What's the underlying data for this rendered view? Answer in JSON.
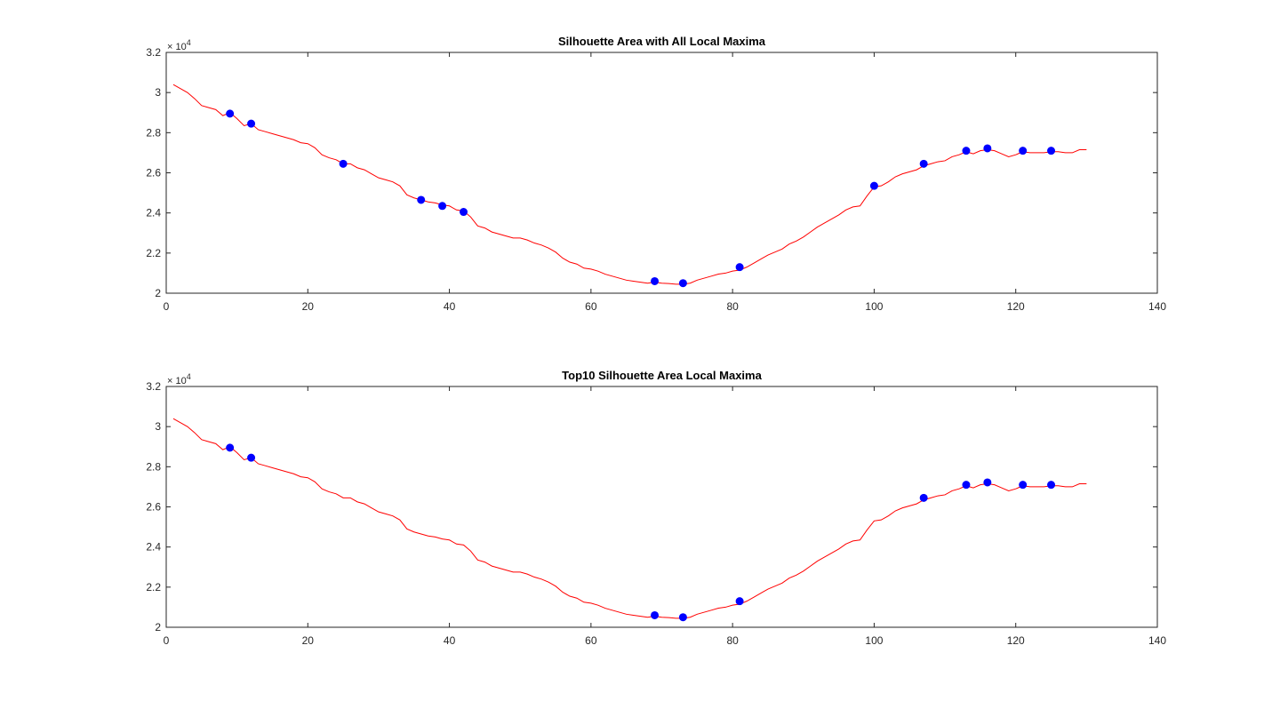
{
  "colors": {
    "line": "#ff0000",
    "marker": "#0000ff",
    "axis": "#262626",
    "background": "#ffffff"
  },
  "chart_data": [
    {
      "type": "line",
      "title": "Silhouette Area with All Local Maxima",
      "xlabel": "",
      "ylabel": "",
      "y_exponent_label": "× 10",
      "y_exponent_power": "4",
      "xlim": [
        0,
        140
      ],
      "ylim": [
        20000,
        32000
      ],
      "xticks": [
        0,
        20,
        40,
        60,
        80,
        100,
        120,
        140
      ],
      "xtick_labels": [
        "0",
        "20",
        "40",
        "60",
        "80",
        "100",
        "120",
        "140"
      ],
      "yticks": [
        20000,
        22000,
        24000,
        26000,
        28000,
        30000,
        32000
      ],
      "ytick_labels": [
        "2",
        "2.2",
        "2.4",
        "2.6",
        "2.8",
        "3",
        "3.2"
      ],
      "grid": false,
      "series": [
        {
          "type": "line",
          "x": [
            1,
            2,
            3,
            4,
            5,
            6,
            7,
            8,
            9,
            10,
            11,
            12,
            13,
            14,
            15,
            16,
            17,
            18,
            19,
            20,
            21,
            22,
            23,
            24,
            25,
            26,
            27,
            28,
            29,
            30,
            31,
            32,
            33,
            34,
            35,
            36,
            37,
            38,
            39,
            40,
            41,
            42,
            43,
            44,
            45,
            46,
            47,
            48,
            49,
            50,
            51,
            52,
            53,
            54,
            55,
            56,
            57,
            58,
            59,
            60,
            61,
            62,
            63,
            64,
            65,
            66,
            67,
            68,
            69,
            70,
            71,
            72,
            73,
            74,
            75,
            76,
            77,
            78,
            79,
            80,
            81,
            82,
            83,
            84,
            85,
            86,
            87,
            88,
            89,
            90,
            91,
            92,
            93,
            94,
            95,
            96,
            97,
            98,
            99,
            100,
            101,
            102,
            103,
            104,
            105,
            106,
            107,
            108,
            109,
            110,
            111,
            112,
            113,
            114,
            115,
            116,
            117,
            118,
            119,
            120,
            121,
            122,
            123,
            124,
            125,
            126,
            127,
            128,
            129,
            130
          ],
          "y": [
            30400,
            30200,
            30000,
            29700,
            29350,
            29250,
            29150,
            28850,
            29000,
            28700,
            28350,
            28450,
            28150,
            28050,
            27950,
            27850,
            27750,
            27650,
            27500,
            27450,
            27250,
            26900,
            26750,
            26650,
            26450,
            26450,
            26250,
            26150,
            25950,
            25750,
            25650,
            25550,
            25350,
            24900,
            24750,
            24650,
            24550,
            24500,
            24400,
            24350,
            24150,
            24100,
            23800,
            23350,
            23250,
            23050,
            22950,
            22850,
            22750,
            22750,
            22650,
            22500,
            22400,
            22250,
            22050,
            21750,
            21550,
            21450,
            21250,
            21200,
            21100,
            20950,
            20850,
            20750,
            20650,
            20600,
            20550,
            20500,
            20550,
            20500,
            20480,
            20450,
            20450,
            20500,
            20650,
            20750,
            20850,
            20950,
            21000,
            21100,
            21150,
            21300,
            21500,
            21700,
            21900,
            22050,
            22200,
            22450,
            22600,
            22800,
            23050,
            23300,
            23500,
            23700,
            23900,
            24150,
            24300,
            24350,
            24850,
            25300,
            25350,
            25550,
            25800,
            25950,
            26050,
            26150,
            26350,
            26450,
            26550,
            26600,
            26800,
            26900,
            27050,
            26950,
            27100,
            27150,
            27100,
            26950,
            26800,
            26900,
            27050,
            27000,
            27000,
            27000,
            27050,
            27050,
            27000,
            27000,
            27150,
            27150
          ]
        },
        {
          "type": "scatter",
          "x": [
            9,
            12,
            25,
            36,
            39,
            42,
            69,
            73,
            81,
            100,
            107,
            113,
            116,
            121,
            125
          ],
          "y": [
            28950,
            28450,
            26450,
            24650,
            24350,
            24050,
            20600,
            20500,
            21300,
            25350,
            26450,
            27100,
            27220,
            27100,
            27100
          ]
        }
      ]
    },
    {
      "type": "line",
      "title": "Top10 Silhouette Area Local Maxima",
      "xlabel": "",
      "ylabel": "",
      "y_exponent_label": "× 10",
      "y_exponent_power": "4",
      "xlim": [
        0,
        140
      ],
      "ylim": [
        20000,
        32000
      ],
      "xticks": [
        0,
        20,
        40,
        60,
        80,
        100,
        120,
        140
      ],
      "xtick_labels": [
        "0",
        "20",
        "40",
        "60",
        "80",
        "100",
        "120",
        "140"
      ],
      "yticks": [
        20000,
        22000,
        24000,
        26000,
        28000,
        30000,
        32000
      ],
      "ytick_labels": [
        "2",
        "2.2",
        "2.4",
        "2.6",
        "2.8",
        "3",
        "3.2"
      ],
      "grid": false,
      "series": [
        {
          "type": "line",
          "x": [
            1,
            2,
            3,
            4,
            5,
            6,
            7,
            8,
            9,
            10,
            11,
            12,
            13,
            14,
            15,
            16,
            17,
            18,
            19,
            20,
            21,
            22,
            23,
            24,
            25,
            26,
            27,
            28,
            29,
            30,
            31,
            32,
            33,
            34,
            35,
            36,
            37,
            38,
            39,
            40,
            41,
            42,
            43,
            44,
            45,
            46,
            47,
            48,
            49,
            50,
            51,
            52,
            53,
            54,
            55,
            56,
            57,
            58,
            59,
            60,
            61,
            62,
            63,
            64,
            65,
            66,
            67,
            68,
            69,
            70,
            71,
            72,
            73,
            74,
            75,
            76,
            77,
            78,
            79,
            80,
            81,
            82,
            83,
            84,
            85,
            86,
            87,
            88,
            89,
            90,
            91,
            92,
            93,
            94,
            95,
            96,
            97,
            98,
            99,
            100,
            101,
            102,
            103,
            104,
            105,
            106,
            107,
            108,
            109,
            110,
            111,
            112,
            113,
            114,
            115,
            116,
            117,
            118,
            119,
            120,
            121,
            122,
            123,
            124,
            125,
            126,
            127,
            128,
            129,
            130
          ],
          "y": [
            30400,
            30200,
            30000,
            29700,
            29350,
            29250,
            29150,
            28850,
            29000,
            28700,
            28350,
            28450,
            28150,
            28050,
            27950,
            27850,
            27750,
            27650,
            27500,
            27450,
            27250,
            26900,
            26750,
            26650,
            26450,
            26450,
            26250,
            26150,
            25950,
            25750,
            25650,
            25550,
            25350,
            24900,
            24750,
            24650,
            24550,
            24500,
            24400,
            24350,
            24150,
            24100,
            23800,
            23350,
            23250,
            23050,
            22950,
            22850,
            22750,
            22750,
            22650,
            22500,
            22400,
            22250,
            22050,
            21750,
            21550,
            21450,
            21250,
            21200,
            21100,
            20950,
            20850,
            20750,
            20650,
            20600,
            20550,
            20500,
            20550,
            20500,
            20480,
            20450,
            20450,
            20500,
            20650,
            20750,
            20850,
            20950,
            21000,
            21100,
            21150,
            21300,
            21500,
            21700,
            21900,
            22050,
            22200,
            22450,
            22600,
            22800,
            23050,
            23300,
            23500,
            23700,
            23900,
            24150,
            24300,
            24350,
            24850,
            25300,
            25350,
            25550,
            25800,
            25950,
            26050,
            26150,
            26350,
            26450,
            26550,
            26600,
            26800,
            26900,
            27050,
            26950,
            27100,
            27150,
            27100,
            26950,
            26800,
            26900,
            27050,
            27000,
            27000,
            27000,
            27050,
            27050,
            27000,
            27000,
            27150,
            27150
          ]
        },
        {
          "type": "scatter",
          "x": [
            9,
            12,
            69,
            73,
            81,
            107,
            113,
            116,
            121,
            125
          ],
          "y": [
            28950,
            28450,
            20600,
            20500,
            21300,
            26450,
            27100,
            27220,
            27100,
            27100
          ]
        }
      ]
    }
  ]
}
